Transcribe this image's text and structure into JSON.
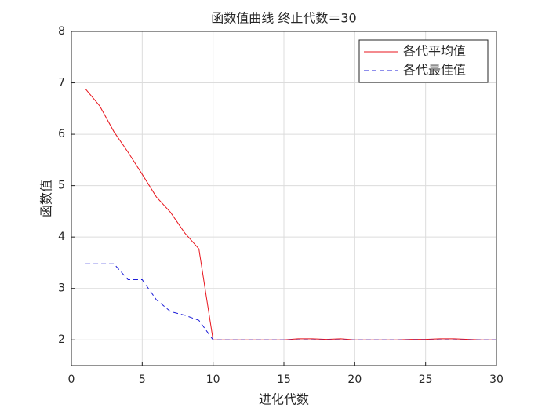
{
  "chart_data": {
    "type": "line",
    "title": "函数值曲线  终止代数＝30",
    "xlabel": "进化代数",
    "ylabel": "函数值",
    "x": [
      1,
      2,
      3,
      4,
      5,
      6,
      7,
      8,
      9,
      10,
      11,
      12,
      13,
      14,
      15,
      16,
      17,
      18,
      19,
      20,
      21,
      22,
      23,
      24,
      25,
      26,
      27,
      28,
      29,
      30
    ],
    "series": [
      {
        "name": "各代平均值",
        "color": "#e8141c",
        "dash": "solid",
        "values": [
          6.88,
          6.55,
          6.05,
          5.65,
          5.22,
          4.78,
          4.48,
          4.08,
          3.77,
          2.0,
          2.0,
          2.0,
          2.0,
          2.0,
          2.0,
          2.02,
          2.02,
          2.01,
          2.02,
          2.0,
          2.0,
          2.0,
          2.0,
          2.01,
          2.01,
          2.02,
          2.02,
          2.01,
          2.0,
          2.0
        ]
      },
      {
        "name": "各代最佳值",
        "color": "#1c1cd8",
        "dash": "dashed",
        "values": [
          3.48,
          3.48,
          3.48,
          3.17,
          3.17,
          2.78,
          2.55,
          2.48,
          2.38,
          2.0,
          2.0,
          2.0,
          2.0,
          2.0,
          2.0,
          2.0,
          2.0,
          2.0,
          2.0,
          2.0,
          2.0,
          2.0,
          2.0,
          2.0,
          2.0,
          2.0,
          2.0,
          2.0,
          2.0,
          2.0
        ]
      }
    ],
    "xlim": [
      0,
      30
    ],
    "xticks": [
      0,
      5,
      10,
      15,
      20,
      25,
      30
    ],
    "ylim": [
      1.5,
      8
    ],
    "yticks": [
      2,
      3,
      4,
      5,
      6,
      7,
      8
    ],
    "grid": true,
    "legend": "northeast"
  }
}
